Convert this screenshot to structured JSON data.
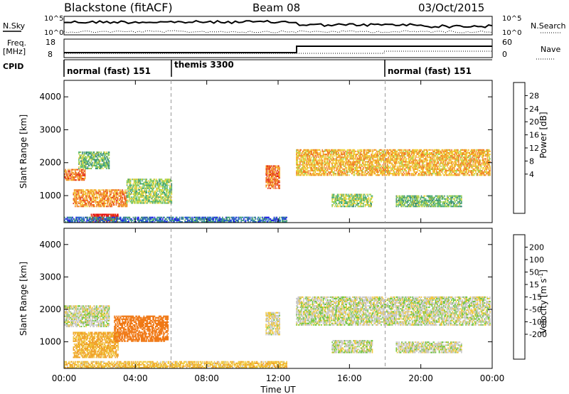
{
  "header": {
    "station": "Blackstone (fitACF)",
    "beam": "Beam 08",
    "date": "03/Oct/2015"
  },
  "noise_panel": {
    "left_label": "N.Sky",
    "right_label": "N.Search",
    "left_ticks": [
      "10^5",
      "10^0"
    ],
    "right_ticks": [
      "10^5",
      "10^0"
    ]
  },
  "freq_panel": {
    "left_label_1": "Freq.",
    "left_label_2": "[MHz]",
    "right_label": "Nave",
    "left_ticks": [
      "18",
      "8"
    ],
    "right_ticks": [
      "60",
      "0"
    ]
  },
  "cpid_panel": {
    "label": "CPID",
    "segments": [
      {
        "label": "normal (fast) 151",
        "start_hour": 0,
        "end_hour": 6
      },
      {
        "label": "themis 3300",
        "start_hour": 6,
        "end_hour": 18
      },
      {
        "label": "normal (fast) 151",
        "start_hour": 18,
        "end_hour": 24
      }
    ]
  },
  "power_panel": {
    "ylabel": "Slant Range [km]",
    "cbar_label": "Power [dB]",
    "cbar_ticks": [
      "28",
      "24",
      "20",
      "16",
      "12",
      "8",
      "4"
    ],
    "colors": [
      "#1e1ee6",
      "#2868c8",
      "#3c8c78",
      "#50b478",
      "#a0d250",
      "#f0d23c",
      "#f5aa28",
      "#f07828",
      "#e63c1e",
      "#e60a0a"
    ]
  },
  "velocity_panel": {
    "ylabel": "Slant Range [km]",
    "cbar_label": "Velocity [m s",
    "cbar_label_sup": "-1",
    "cbar_ticks": [
      "200",
      "100",
      "50",
      "15",
      "-15",
      "-50",
      "-100",
      "-200"
    ],
    "colors": [
      "#2828d2",
      "#3c78c8",
      "#3c8c3c",
      "#6ec83c",
      "#c8c8c8",
      "#f0c83c",
      "#f0a028",
      "#f07814",
      "#e6461e",
      "#e61414"
    ]
  },
  "xaxis": {
    "label": "Time UT",
    "ticks": [
      "00:00",
      "04:00",
      "08:00",
      "12:00",
      "16:00",
      "20:00",
      "00:00"
    ]
  },
  "yaxis_ticks": [
    "1000",
    "2000",
    "3000",
    "4000"
  ],
  "chart_data": [
    {
      "type": "heatmap",
      "title": "Blackstone (fitACF)  Beam 08  03/Oct/2015",
      "xlabel": "Time UT",
      "ylabel": "Slant Range [km]",
      "colorbar": "Power [dB]",
      "x_range_hours": [
        0,
        24
      ],
      "y_range_km": [
        180,
        4500
      ],
      "color_range_db": [
        0,
        32
      ],
      "regions": [
        {
          "t0": 0.0,
          "t1": 1.2,
          "r0": 1450,
          "r1": 1800,
          "value_db": 24
        },
        {
          "t0": 0.8,
          "t1": 2.5,
          "r0": 1800,
          "r1": 2300,
          "value_db": 12
        },
        {
          "t0": 0.5,
          "t1": 3.5,
          "r0": 650,
          "r1": 1150,
          "value_db": 22
        },
        {
          "t0": 3.5,
          "t1": 6.0,
          "r0": 750,
          "r1": 1500,
          "value_db": 14
        },
        {
          "t0": 1.5,
          "t1": 3.0,
          "r0": 180,
          "r1": 450,
          "value_db": 30
        },
        {
          "t0": 0.0,
          "t1": 12.5,
          "r0": 180,
          "r1": 350,
          "value_db": 6
        },
        {
          "t0": 11.3,
          "t1": 12.1,
          "r0": 1200,
          "r1": 1900,
          "value_db": 24
        },
        {
          "t0": 13.0,
          "t1": 23.9,
          "r0": 1600,
          "r1": 2400,
          "value_db": 20
        },
        {
          "t0": 15.0,
          "t1": 17.3,
          "r0": 650,
          "r1": 1050,
          "value_db": 14
        },
        {
          "t0": 18.6,
          "t1": 22.3,
          "r0": 650,
          "r1": 1000,
          "value_db": 12
        }
      ]
    },
    {
      "type": "heatmap",
      "title": "",
      "xlabel": "Time UT",
      "ylabel": "Slant Range [km]",
      "colorbar": "Velocity [m s-1]",
      "x_range_hours": [
        0,
        24
      ],
      "y_range_km": [
        180,
        4500
      ],
      "color_levels": [
        200,
        100,
        50,
        15,
        -15,
        -50,
        -100,
        -200
      ],
      "regions": [
        {
          "t0": 0.0,
          "t1": 2.5,
          "r0": 1450,
          "r1": 2100,
          "value_ms": 0
        },
        {
          "t0": 0.5,
          "t1": 3.0,
          "r0": 500,
          "r1": 1300,
          "value_ms": -60
        },
        {
          "t0": 2.8,
          "t1": 5.8,
          "r0": 1000,
          "r1": 1800,
          "value_ms": -150
        },
        {
          "t0": 0.0,
          "t1": 12.5,
          "r0": 180,
          "r1": 400,
          "value_ms": -40
        },
        {
          "t0": 11.3,
          "t1": 12.1,
          "r0": 1200,
          "r1": 1900,
          "value_ms": -10
        },
        {
          "t0": 13.0,
          "t1": 23.9,
          "r0": 1500,
          "r1": 2400,
          "value_ms": 0
        },
        {
          "t0": 15.0,
          "t1": 17.3,
          "r0": 650,
          "r1": 1050,
          "value_ms": 0
        },
        {
          "t0": 18.6,
          "t1": 22.3,
          "r0": 650,
          "r1": 1000,
          "value_ms": 0
        }
      ]
    }
  ]
}
